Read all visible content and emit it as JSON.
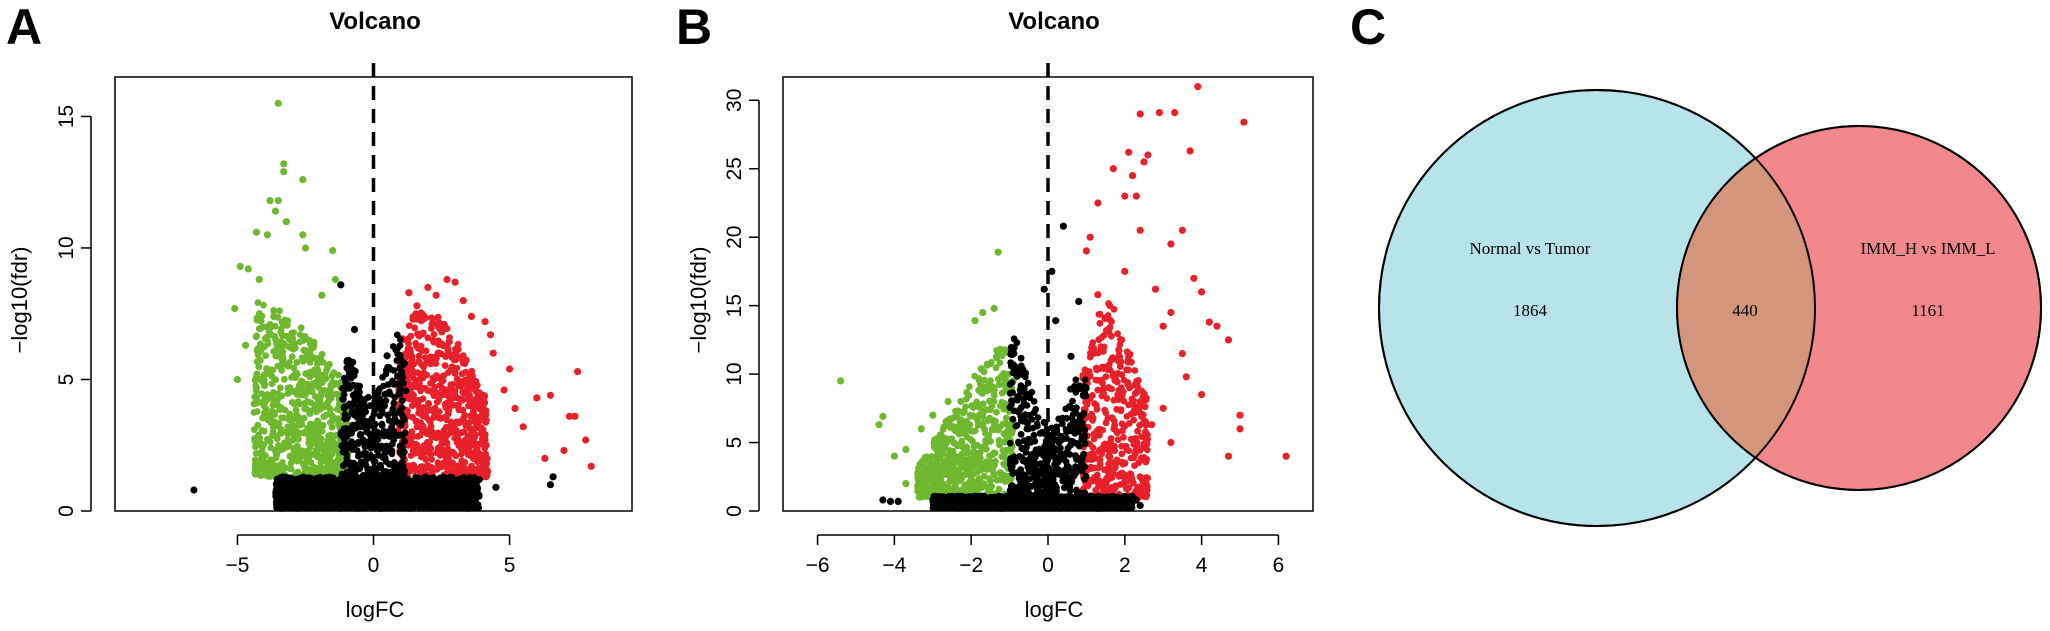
{
  "panels": [
    {
      "letter": "A"
    },
    {
      "letter": "B"
    },
    {
      "letter": "C"
    }
  ],
  "colors": {
    "up": "#e8202a",
    "down": "#6db82e",
    "ns": "#000000",
    "venn_left": "#b7e3ea",
    "venn_right": "#f2888c",
    "venn_overlap": "#d4967a"
  },
  "chart_data": [
    {
      "type": "scatter",
      "title": "Volcano",
      "xlabel": "logFC",
      "ylabel": "−log10(fdr)",
      "xlim": [
        -9.5,
        9.5
      ],
      "ylim": [
        0,
        16.5
      ],
      "xticks": [
        -5,
        0,
        5
      ],
      "xtick_labels": [
        "−5",
        "0",
        "5"
      ],
      "yticks": [
        0,
        5,
        10,
        15
      ],
      "ytick_labels": [
        "0",
        "5",
        "10",
        "15"
      ],
      "threshold_x": 0,
      "series": [
        {
          "color": "up",
          "values": [
            [
              1.3,
              8.3
            ],
            [
              1.6,
              7.8
            ],
            [
              2.0,
              8.5
            ],
            [
              2.3,
              8.2
            ],
            [
              2.7,
              8.8
            ],
            [
              3.0,
              8.7
            ],
            [
              3.3,
              8.0
            ],
            [
              3.6,
              7.4
            ],
            [
              4.1,
              7.2
            ],
            [
              4.3,
              6.7
            ],
            [
              4.4,
              6.0
            ],
            [
              5.0,
              5.4
            ],
            [
              7.5,
              5.3
            ],
            [
              6.5,
              4.4
            ],
            [
              6.0,
              4.3
            ],
            [
              7.2,
              3.6
            ],
            [
              7.4,
              3.6
            ],
            [
              7.0,
              2.3
            ],
            [
              7.8,
              2.7
            ],
            [
              8.0,
              1.7
            ],
            [
              5.5,
              3.2
            ],
            [
              4.8,
              4.6
            ],
            [
              5.2,
              3.9
            ],
            [
              6.3,
              2.0
            ]
          ]
        },
        {
          "color": "down",
          "values": [
            [
              -3.5,
              15.5
            ],
            [
              -3.3,
              13.2
            ],
            [
              -3.3,
              12.9
            ],
            [
              -2.6,
              12.6
            ],
            [
              -3.8,
              11.8
            ],
            [
              -3.5,
              11.8
            ],
            [
              -3.6,
              11.4
            ],
            [
              -3.2,
              11.0
            ],
            [
              -4.3,
              10.6
            ],
            [
              -3.9,
              10.5
            ],
            [
              -2.6,
              10.5
            ],
            [
              -2.5,
              10.0
            ],
            [
              -1.5,
              9.9
            ],
            [
              -4.9,
              9.3
            ],
            [
              -4.6,
              9.2
            ],
            [
              -4.2,
              8.8
            ],
            [
              -5.1,
              7.7
            ],
            [
              -4.7,
              6.3
            ],
            [
              -5.0,
              5.0
            ],
            [
              -4.0,
              4.8
            ],
            [
              -3.4,
              3.1
            ],
            [
              -3.5,
              2.4
            ],
            [
              -2.8,
              1.9
            ],
            [
              -3.8,
              3.5
            ],
            [
              -4.3,
              4.3
            ],
            [
              -1.4,
              8.8
            ],
            [
              -1.9,
              8.2
            ]
          ]
        },
        {
          "color": "ns",
          "values": [
            [
              -6.6,
              0.8
            ],
            [
              -3.3,
              1.2
            ],
            [
              -3.1,
              0.3
            ],
            [
              -2.2,
              1.2
            ],
            [
              -1.2,
              8.6
            ],
            [
              -0.7,
              6.9
            ],
            [
              0.5,
              5.9
            ],
            [
              6.5,
              1.0
            ],
            [
              6.6,
              1.3
            ],
            [
              4.5,
              0.9
            ],
            [
              3.4,
              0.7
            ],
            [
              -0.5,
              3.2
            ],
            [
              0.4,
              4.0
            ],
            [
              -1.0,
              2.5
            ],
            [
              1.0,
              1.6
            ]
          ]
        }
      ],
      "regions": [
        {
          "color": "down",
          "fill_x": [
            -4.4,
            -0.9
          ],
          "top": [
            [
              -4.4,
              8.0
            ],
            [
              -3.8,
              8.0
            ],
            [
              -3.2,
              7.4
            ],
            [
              -2.6,
              7.0
            ],
            [
              -2.0,
              6.2
            ],
            [
              -1.5,
              5.4
            ],
            [
              -0.9,
              4.8
            ]
          ],
          "bottom": 1.3
        },
        {
          "color": "up",
          "fill_x": [
            0.9,
            4.2
          ],
          "top": [
            [
              0.9,
              6.3
            ],
            [
              1.3,
              7.2
            ],
            [
              1.7,
              7.8
            ],
            [
              2.2,
              7.6
            ],
            [
              2.7,
              7.0
            ],
            [
              3.2,
              6.2
            ],
            [
              3.7,
              5.2
            ],
            [
              4.2,
              4.2
            ]
          ],
          "bottom": 1.3
        },
        {
          "color": "ns",
          "fill_x": [
            -1.2,
            1.2
          ],
          "top": [
            [
              -1.2,
              5.0
            ],
            [
              -0.9,
              6.2
            ],
            [
              -0.5,
              4.8
            ],
            [
              0,
              4.2
            ],
            [
              0.5,
              5.6
            ],
            [
              0.9,
              6.8
            ],
            [
              1.2,
              6.0
            ]
          ],
          "bottom": 0.1
        },
        {
          "color": "ns",
          "fill_x": [
            -3.6,
            3.9
          ],
          "top": [
            [
              -3.6,
              1.3
            ],
            [
              3.9,
              1.3
            ]
          ],
          "bottom": 0.1
        }
      ]
    },
    {
      "type": "scatter",
      "title": "Volcano",
      "xlabel": "logFC",
      "ylabel": "−log10(fdr)",
      "xlim": [
        -6.9,
        6.9
      ],
      "ylim": [
        0,
        31.7
      ],
      "xticks": [
        -6,
        -4,
        -2,
        0,
        2,
        4,
        6
      ],
      "xtick_labels": [
        "−6",
        "−4",
        "−2",
        "0",
        "2",
        "4",
        "6"
      ],
      "yticks": [
        0,
        5,
        10,
        15,
        20,
        25,
        30
      ],
      "ytick_labels": [
        "0",
        "5",
        "10",
        "15",
        "20",
        "25",
        "30"
      ],
      "threshold_x": 0,
      "series": [
        {
          "color": "up",
          "values": [
            [
              3.9,
              31.0
            ],
            [
              5.1,
              28.4
            ],
            [
              2.4,
              29.0
            ],
            [
              2.9,
              29.1
            ],
            [
              3.3,
              29.1
            ],
            [
              2.1,
              26.2
            ],
            [
              2.5,
              25.5
            ],
            [
              2.6,
              26.0
            ],
            [
              1.7,
              25.0
            ],
            [
              2.2,
              24.5
            ],
            [
              3.7,
              26.3
            ],
            [
              2.0,
              23.0
            ],
            [
              2.3,
              23.0
            ],
            [
              1.3,
              22.5
            ],
            [
              2.4,
              20.5
            ],
            [
              3.5,
              20.5
            ],
            [
              3.2,
              19.5
            ],
            [
              3.8,
              17.0
            ],
            [
              1.1,
              20.0
            ],
            [
              1.0,
              19.0
            ],
            [
              1.3,
              15.8
            ],
            [
              2.0,
              17.5
            ],
            [
              2.8,
              16.2
            ],
            [
              3.2,
              14.5
            ],
            [
              4.0,
              16.0
            ],
            [
              4.2,
              13.8
            ],
            [
              4.4,
              13.5
            ],
            [
              4.7,
              12.5
            ],
            [
              3.0,
              13.5
            ],
            [
              3.5,
              11.5
            ],
            [
              4.0,
              8.5
            ],
            [
              5.0,
              7.0
            ],
            [
              5.0,
              6.0
            ],
            [
              4.7,
              4.0
            ],
            [
              6.2,
              4.0
            ],
            [
              3.6,
              9.8
            ],
            [
              2.7,
              6.3
            ],
            [
              3.2,
              5.0
            ],
            [
              2.0,
              3.5
            ],
            [
              2.4,
              2.5
            ],
            [
              3.0,
              7.5
            ]
          ]
        },
        {
          "color": "down",
          "values": [
            [
              -1.3,
              18.9
            ],
            [
              -1.4,
              14.8
            ],
            [
              -1.7,
              14.5
            ],
            [
              -1.9,
              13.9
            ],
            [
              -5.4,
              9.5
            ],
            [
              -4.3,
              6.9
            ],
            [
              -4.4,
              6.3
            ],
            [
              -3.3,
              6.0
            ],
            [
              -3.7,
              4.5
            ],
            [
              -4.0,
              4.0
            ],
            [
              -3.3,
              3.0
            ],
            [
              -3.7,
              2.0
            ],
            [
              -2.6,
              8.0
            ],
            [
              -3.0,
              7.0
            ]
          ]
        },
        {
          "color": "ns",
          "values": [
            [
              0.4,
              20.8
            ],
            [
              0.1,
              17.5
            ],
            [
              -0.1,
              16.2
            ],
            [
              0.8,
              15.3
            ],
            [
              0.2,
              13.9
            ],
            [
              0.6,
              11.3
            ],
            [
              -4.1,
              0.7
            ],
            [
              -3.9,
              0.7
            ],
            [
              -4.3,
              0.8
            ],
            [
              2.4,
              0.4
            ],
            [
              2.3,
              0.8
            ],
            [
              1.8,
              0.5
            ]
          ]
        }
      ],
      "regions": [
        {
          "color": "down",
          "fill_x": [
            -3.4,
            -0.9
          ],
          "top": [
            [
              -3.4,
              3.2
            ],
            [
              -3.0,
              5.0
            ],
            [
              -2.6,
              6.8
            ],
            [
              -2.2,
              8.5
            ],
            [
              -1.8,
              10.4
            ],
            [
              -1.4,
              11.8
            ],
            [
              -0.9,
              12.2
            ]
          ],
          "bottom": 1.0
        },
        {
          "color": "up",
          "fill_x": [
            0.9,
            2.6
          ],
          "top": [
            [
              0.9,
              10.0
            ],
            [
              1.2,
              14.0
            ],
            [
              1.6,
              15.5
            ],
            [
              2.0,
              13.0
            ],
            [
              2.3,
              10.0
            ],
            [
              2.6,
              8.0
            ]
          ],
          "bottom": 1.0
        },
        {
          "color": "ns",
          "fill_x": [
            -1.0,
            1.0
          ],
          "top": [
            [
              -1.0,
              13.2
            ],
            [
              -0.8,
              12.5
            ],
            [
              -0.5,
              9.5
            ],
            [
              -0.2,
              7.2
            ],
            [
              0,
              6.0
            ],
            [
              0.3,
              7.0
            ],
            [
              0.6,
              9.6
            ],
            [
              1.0,
              11.0
            ]
          ],
          "bottom": 0.2
        },
        {
          "color": "ns",
          "fill_x": [
            -3.0,
            2.2
          ],
          "top": [
            [
              -3.0,
              1.1
            ],
            [
              2.2,
              1.1
            ]
          ],
          "bottom": 0.2
        }
      ]
    }
  ],
  "venn": {
    "left": {
      "label": "Normal vs Tumor",
      "count": "1864"
    },
    "right": {
      "label": "IMM_H vs IMM_L",
      "count": "1161"
    },
    "overlap": {
      "count": "440"
    }
  }
}
